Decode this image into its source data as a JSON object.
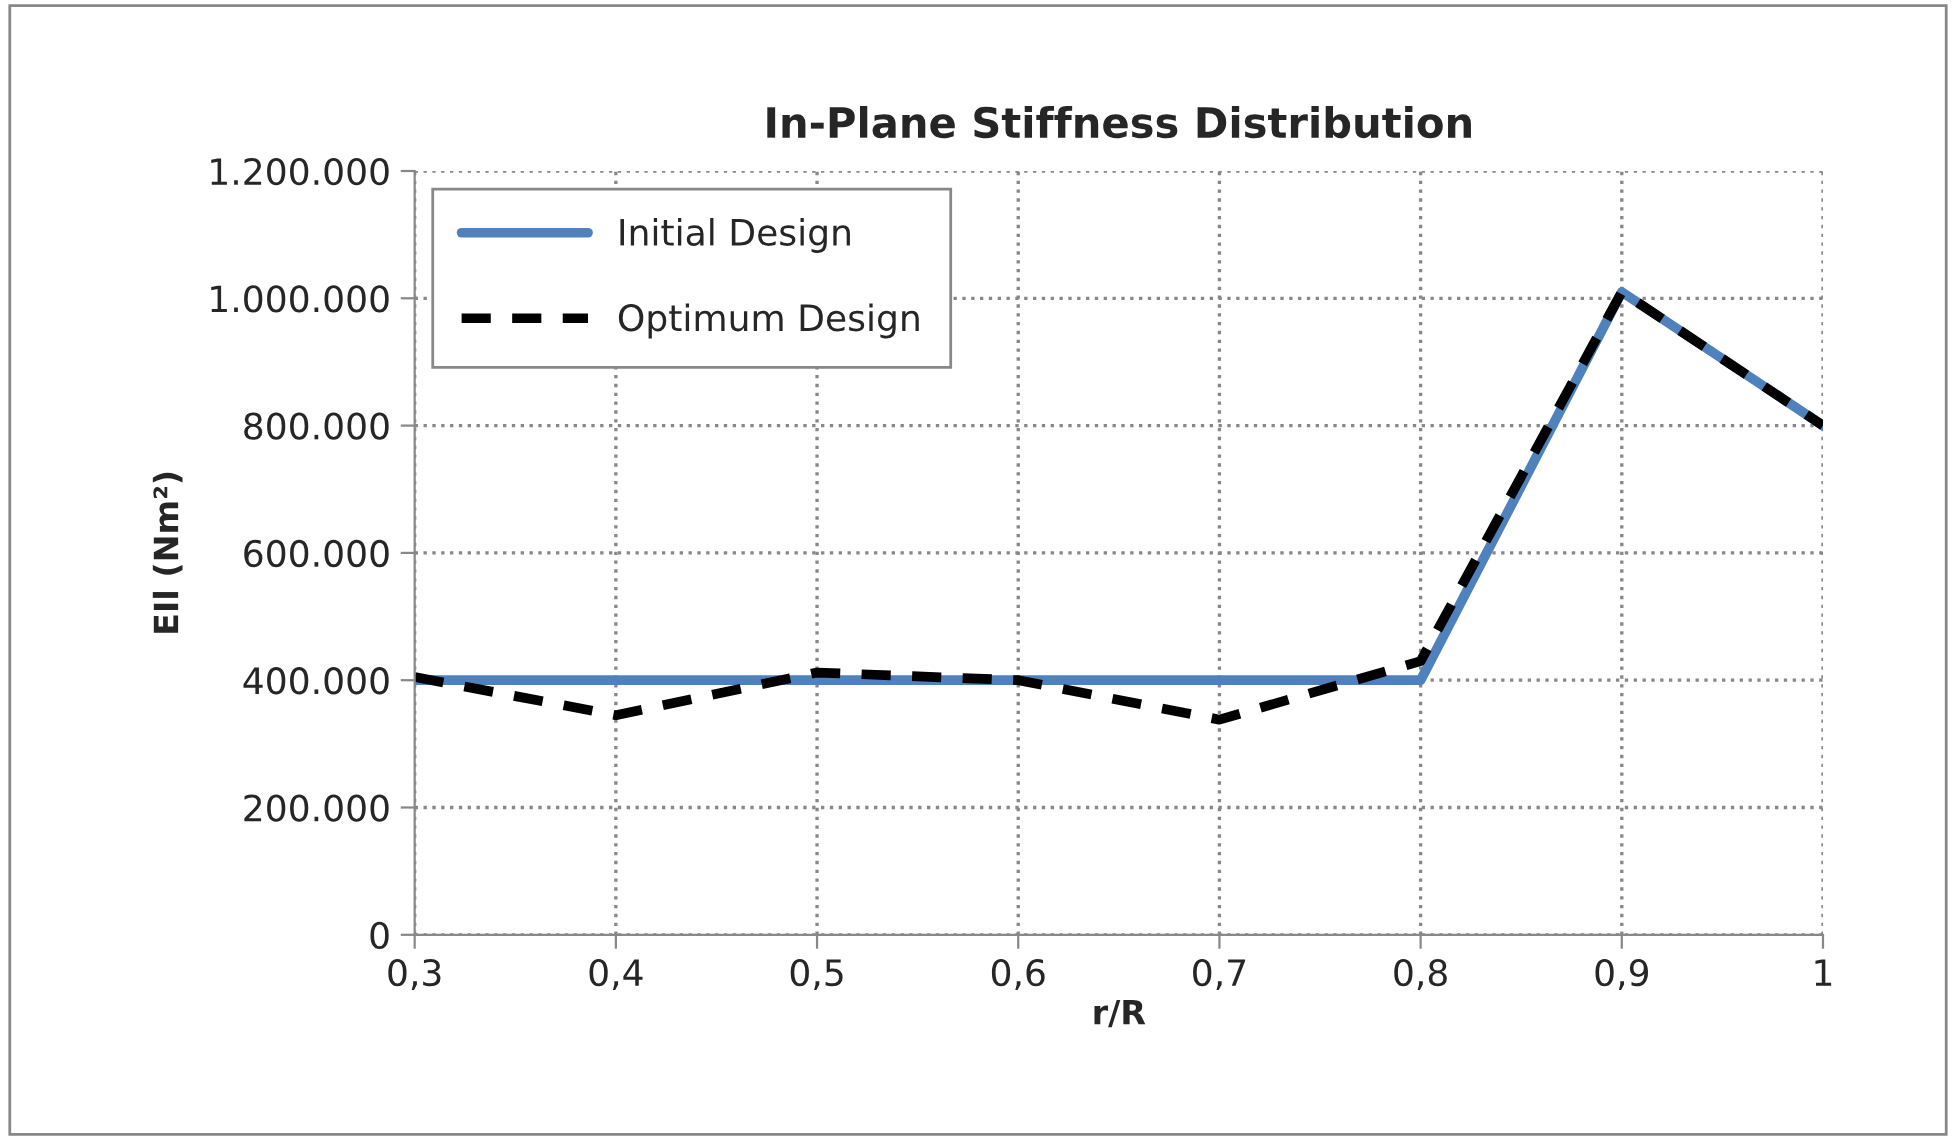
{
  "chart_data": {
    "type": "line",
    "title": "In-Plane Stiffness Distribution",
    "xlabel": "r/R",
    "ylabel": "EIl (Nm²)",
    "x": [
      0.3,
      0.4,
      0.5,
      0.6,
      0.7,
      0.8,
      0.9,
      1.0
    ],
    "series": [
      {
        "name": "Initial Design",
        "color": "#4f81bd",
        "line_style": "solid",
        "values": [
          400000,
          400000,
          400000,
          400000,
          400000,
          400000,
          1010000,
          800000
        ]
      },
      {
        "name": "Optimum Design",
        "color": "#000000",
        "line_style": "dashed",
        "values": [
          405000,
          345000,
          412000,
          400000,
          338000,
          430000,
          1010000,
          800000
        ]
      }
    ],
    "xlim": [
      0.3,
      1.0
    ],
    "xticks": [
      {
        "value": 0.3,
        "label": "0,3"
      },
      {
        "value": 0.4,
        "label": "0,4"
      },
      {
        "value": 0.5,
        "label": "0,5"
      },
      {
        "value": 0.6,
        "label": "0,6"
      },
      {
        "value": 0.7,
        "label": "0,7"
      },
      {
        "value": 0.8,
        "label": "0,8"
      },
      {
        "value": 0.9,
        "label": "0,9"
      },
      {
        "value": 1.0,
        "label": "1"
      }
    ],
    "ylim": [
      0,
      1200000
    ],
    "yticks": [
      0,
      {
        "value": 200000,
        "label": "200.000"
      },
      {
        "value": 400000,
        "label": "400.000"
      },
      {
        "value": 600000,
        "label": "600.000"
      },
      {
        "value": 800000,
        "label": "800.000"
      },
      {
        "value": 1000000,
        "label": "1.000.000"
      },
      {
        "value": 1200000,
        "label": "1.200.000"
      }
    ],
    "grid": true,
    "legend": "top left",
    "marker": "none"
  }
}
